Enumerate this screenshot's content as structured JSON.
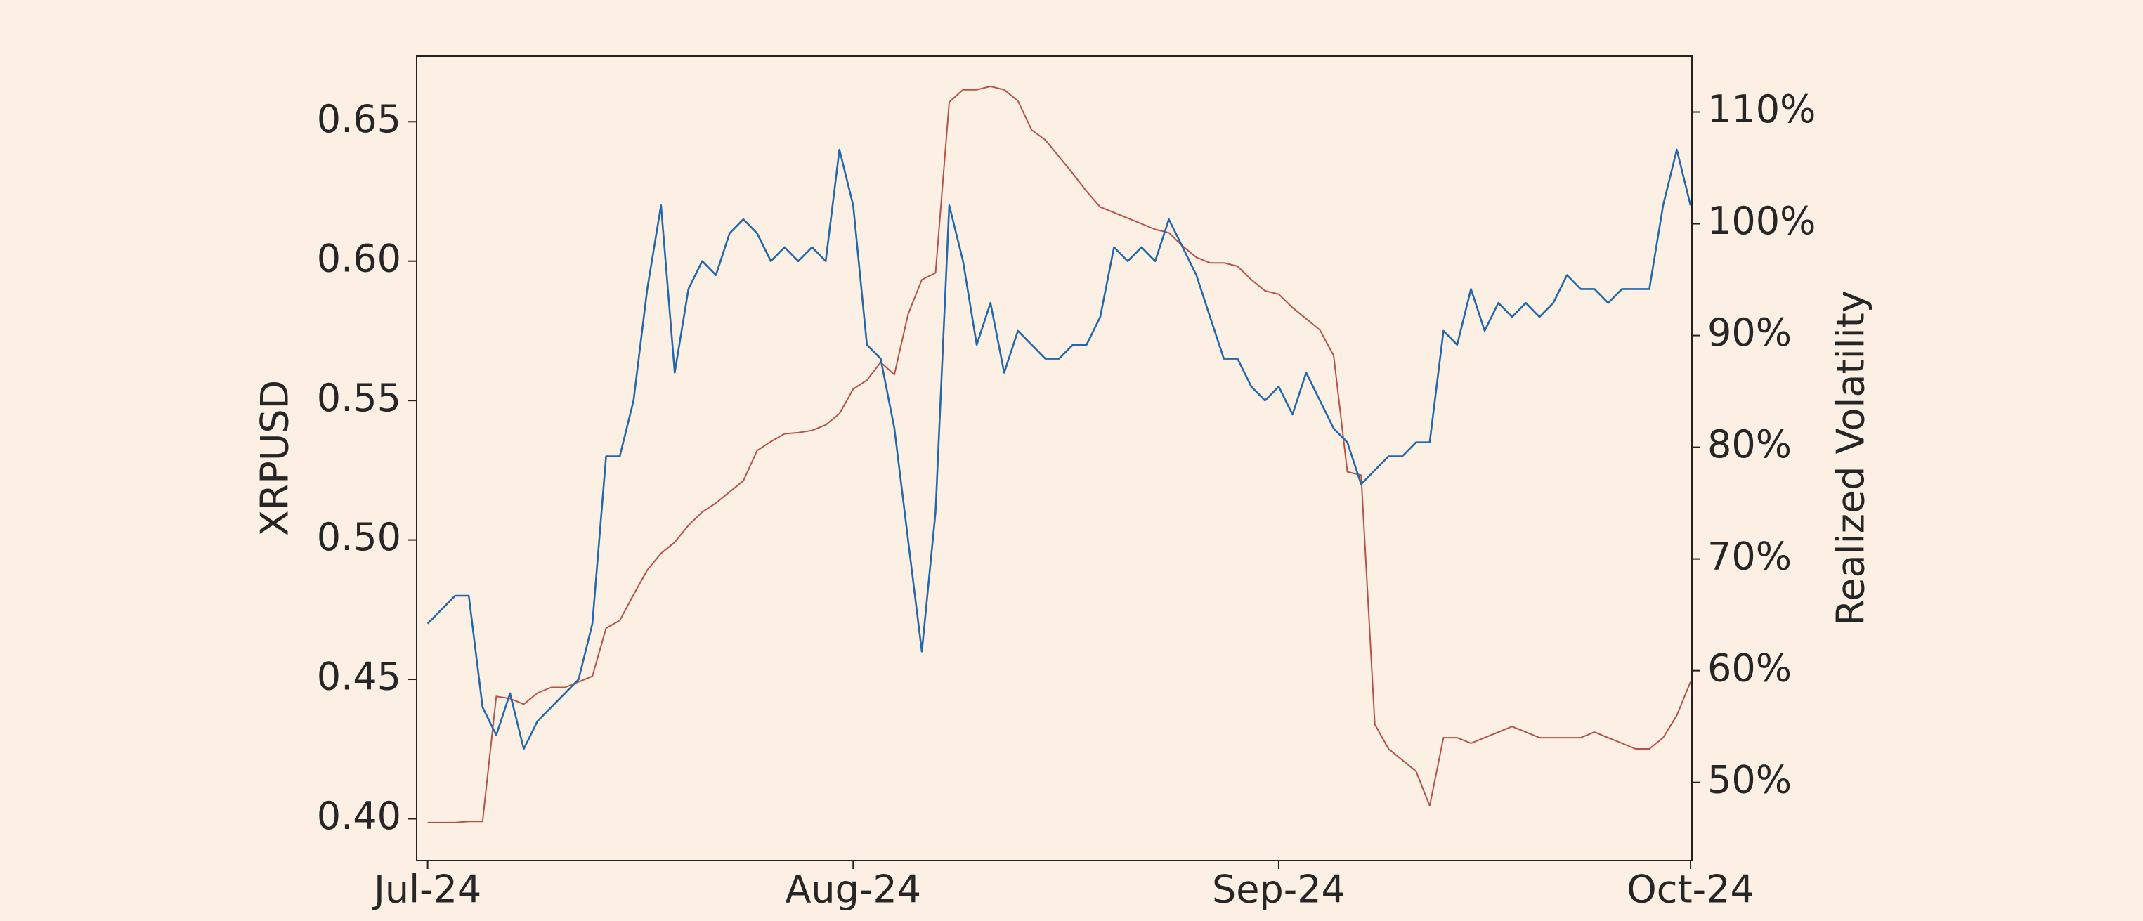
{
  "chart_data": {
    "type": "line",
    "x": [
      0,
      1,
      2,
      3,
      4,
      5,
      6,
      7,
      8,
      9,
      10,
      11,
      12,
      13,
      14,
      15,
      16,
      17,
      18,
      19,
      20,
      21,
      22,
      23,
      24,
      25,
      26,
      27,
      28,
      29,
      30,
      31,
      32,
      33,
      34,
      35,
      36,
      37,
      38,
      39,
      40,
      41,
      42,
      43,
      44,
      45,
      46,
      47,
      48,
      49,
      50,
      51,
      52,
      53,
      54,
      55,
      56,
      57,
      58,
      59,
      60,
      61,
      62,
      63,
      64,
      65,
      66,
      67,
      68,
      69,
      70,
      71,
      72,
      73,
      74,
      75,
      76,
      77,
      78,
      79,
      80,
      81,
      82,
      83,
      84,
      85,
      86,
      87,
      88,
      89,
      90,
      91,
      92
    ],
    "xlim": [
      -0.8,
      92.1
    ],
    "xticks": [
      {
        "value": 0,
        "label": "Jul-24"
      },
      {
        "value": 31,
        "label": "Aug-24"
      },
      {
        "value": 62,
        "label": "Sep-24"
      },
      {
        "value": 92,
        "label": "Oct-24"
      }
    ],
    "ylabel": "XRPUSD",
    "y2label": "Realized Volatility",
    "ylim": [
      0.385,
      0.6735
    ],
    "yticks": [
      {
        "value": 0.4,
        "label": "0.40"
      },
      0.45,
      {
        "value": 0.5,
        "label": "0.50"
      },
      0.55,
      {
        "value": 0.6,
        "label": "0.60"
      },
      0.65
    ],
    "y2lim": [
      43,
      115
    ],
    "y2ticks": [
      {
        "value": 50,
        "label": "50%"
      },
      {
        "value": 60,
        "label": "60%"
      },
      {
        "value": 70,
        "label": "70%"
      },
      {
        "value": 80,
        "label": "80%"
      },
      {
        "value": 90,
        "label": "90%"
      },
      {
        "value": 100,
        "label": "100%"
      },
      {
        "value": 110,
        "label": "110%"
      }
    ],
    "grid": false,
    "series": [
      {
        "color": "#2467ab",
        "values": [
          0.47,
          0.475,
          0.48,
          0.48,
          0.44,
          0.43,
          0.445,
          0.425,
          0.435,
          0.44,
          0.445,
          0.45,
          0.47,
          0.53,
          0.53,
          0.55,
          0.59,
          0.62,
          0.56,
          0.59,
          0.6,
          0.595,
          0.61,
          0.615,
          0.61,
          0.6,
          0.605,
          0.6,
          0.605,
          0.6,
          0.64,
          0.62,
          0.57,
          0.565,
          0.54,
          0.5,
          0.46,
          0.51,
          0.62,
          0.6,
          0.57,
          0.585,
          0.56,
          0.575,
          0.57,
          0.565,
          0.565,
          0.57,
          0.57,
          0.58,
          0.605,
          0.6,
          0.605,
          0.6,
          0.615,
          0.605,
          0.595,
          0.58,
          0.565,
          0.565,
          0.555,
          0.55,
          0.555,
          0.545,
          0.56,
          0.55,
          0.54,
          0.535,
          0.52,
          0.525,
          0.53,
          0.53,
          0.535,
          0.535,
          0.575,
          0.57,
          0.59,
          0.575,
          0.585,
          0.58,
          0.585,
          0.58,
          0.585,
          0.595,
          0.59,
          0.59,
          0.585,
          0.59,
          0.59,
          0.59,
          0.62,
          0.64,
          0.62
        ]
      },
      {
        "color": "#b5534b",
        "axis": "y2",
        "values": [
          46.4,
          46.4,
          46.4,
          46.5,
          46.5,
          57.7,
          57.5,
          57,
          58,
          58.5,
          58.5,
          59,
          59.5,
          63.8,
          64.5,
          66.8,
          69,
          70.5,
          71.5,
          73,
          74.2,
          75,
          76,
          77,
          79.7,
          80.5,
          81.2,
          81.3,
          81.5,
          82,
          83,
          85.2,
          86,
          87.6,
          86.5,
          91.9,
          95,
          95.6,
          110.9,
          112,
          112,
          112.3,
          112,
          111,
          108.4,
          107.5,
          106,
          104.5,
          102.9,
          101.5,
          101,
          100.5,
          100,
          99.5,
          99.2,
          98,
          97,
          96.5,
          96.5,
          96.2,
          95,
          94,
          93.7,
          92.5,
          91.5,
          90.5,
          88.2,
          77.8,
          77.5,
          55.2,
          53,
          52,
          51,
          47.9,
          54,
          54,
          53.5,
          54,
          54.5,
          55,
          54.5,
          54,
          54,
          54,
          54,
          54.5,
          54,
          53.5,
          53,
          53,
          54,
          56,
          59
        ]
      }
    ]
  }
}
